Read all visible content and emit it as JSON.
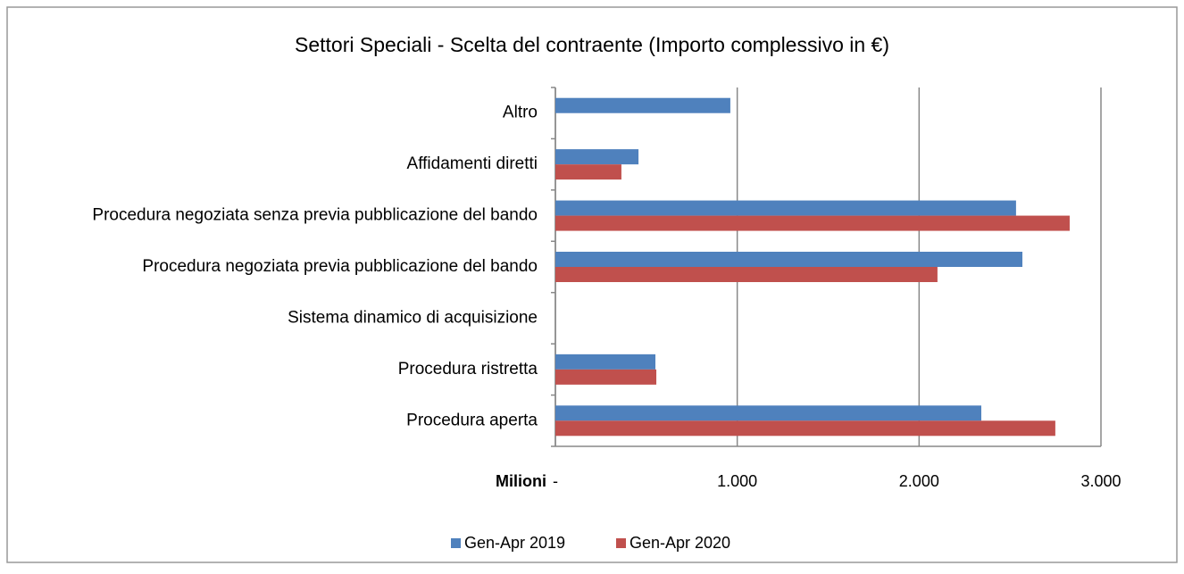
{
  "chart_data": {
    "type": "barh",
    "title": "Settori Speciali - Scelta del contraente (Importo complessivo in €)",
    "xlabel": "Milioni",
    "categories": [
      "Altro",
      "Affidamenti diretti",
      "Procedura negoziata senza previa pubblicazione del bando",
      "Procedura negoziata previa pubblicazione del bando",
      "Sistema dinamico di acquisizione",
      "Procedura ristretta",
      "Procedura aperta"
    ],
    "series": [
      {
        "name": "Gen-Apr 2019",
        "color": "#4f81bd",
        "values": [
          962,
          457,
          2533,
          2568,
          0,
          550,
          2342
        ]
      },
      {
        "name": "Gen-Apr 2020",
        "color": "#c0504d",
        "values": [
          0,
          363,
          2828,
          2101,
          0,
          555,
          2749
        ]
      }
    ],
    "xlim": [
      0,
      3000
    ],
    "xticks": [
      {
        "value": 0,
        "label": "-"
      },
      {
        "value": 1000,
        "label": "1.000"
      },
      {
        "value": 2000,
        "label": "2.000"
      },
      {
        "value": 3000,
        "label": "3.000"
      }
    ],
    "grid": true,
    "legend": "bottom"
  }
}
